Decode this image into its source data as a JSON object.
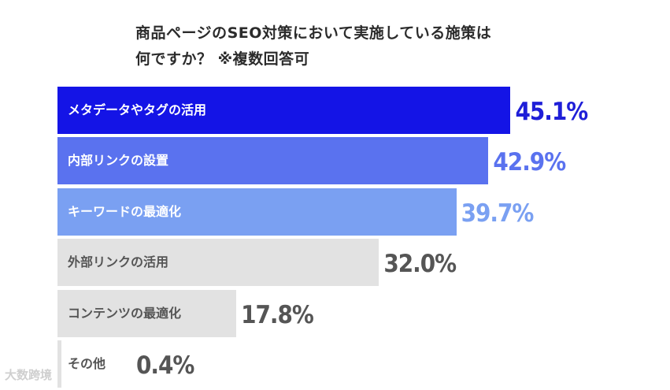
{
  "chart_data": {
    "type": "bar",
    "orientation": "horizontal",
    "title_lines": [
      "商品ページのSEO対策において実施している施策は",
      "何ですか？ ※複数回答可"
    ],
    "categories": [
      "メタデータやタグの活用",
      "内部リンクの設置",
      "キーワードの最適化",
      "外部リンクの活用",
      "コンテンツの最適化",
      "その他"
    ],
    "values": [
      45.1,
      42.9,
      39.7,
      32.0,
      17.8,
      0.4
    ],
    "value_labels": [
      "45.1%",
      "42.9%",
      "39.7%",
      "32.0%",
      "17.8%",
      "0.4%"
    ],
    "unit": "%",
    "xlim": [
      0,
      50
    ],
    "grid": false,
    "colors": {
      "bar_fills": [
        "#1414e6",
        "#5a72ef",
        "#7aa0f2",
        "#e2e2e2",
        "#e2e2e2",
        "#e2e2e2"
      ],
      "label_colors": [
        "#ffffff",
        "#ffffff",
        "#ffffff",
        "#555555",
        "#555555",
        "#555555"
      ],
      "value_colors": [
        "#1f1fd8",
        "#5a72ef",
        "#7aa0f2",
        "#555555",
        "#555555",
        "#555555"
      ]
    }
  },
  "watermark": "大数跨境"
}
